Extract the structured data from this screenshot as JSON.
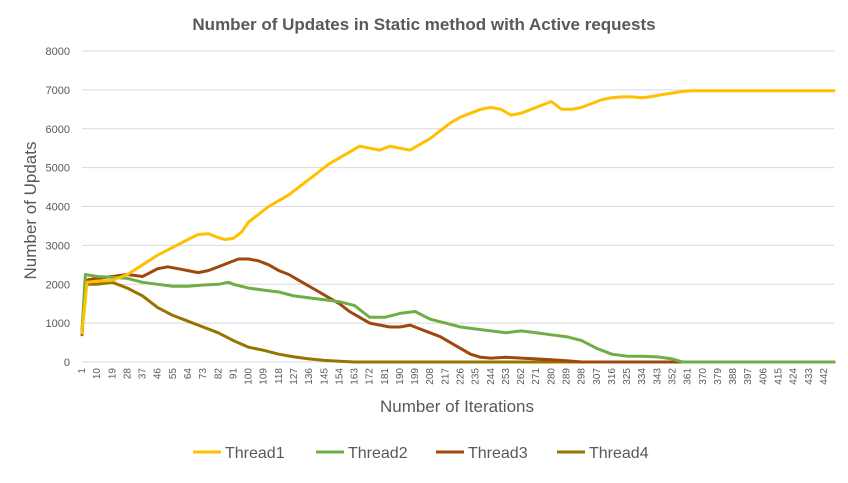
{
  "chart_data": {
    "type": "line",
    "title": "Number of Updates in Static method with Active requests",
    "xlabel": "Number of Iterations",
    "ylabel": "Number of Updats",
    "ylim": [
      0,
      8000
    ],
    "yticks": [
      0,
      1000,
      2000,
      3000,
      4000,
      5000,
      6000,
      7000,
      8000
    ],
    "xlim": [
      1,
      448
    ],
    "xticks": [
      1,
      10,
      19,
      28,
      37,
      46,
      55,
      64,
      73,
      82,
      91,
      100,
      109,
      118,
      127,
      136,
      145,
      154,
      163,
      172,
      181,
      190,
      199,
      208,
      217,
      226,
      235,
      244,
      253,
      262,
      271,
      280,
      289,
      298,
      307,
      316,
      325,
      334,
      343,
      352,
      361,
      370,
      379,
      388,
      397,
      406,
      415,
      424,
      433,
      442
    ],
    "grid": "horizontal",
    "legend": "bottom",
    "series": [
      {
        "name": "Thread1",
        "color": "#FFC000",
        "points": [
          [
            1,
            750
          ],
          [
            4,
            2050
          ],
          [
            10,
            2080
          ],
          [
            19,
            2100
          ],
          [
            28,
            2250
          ],
          [
            37,
            2500
          ],
          [
            46,
            2750
          ],
          [
            55,
            2950
          ],
          [
            64,
            3150
          ],
          [
            70,
            3280
          ],
          [
            76,
            3300
          ],
          [
            82,
            3200
          ],
          [
            86,
            3150
          ],
          [
            91,
            3180
          ],
          [
            96,
            3350
          ],
          [
            100,
            3600
          ],
          [
            106,
            3800
          ],
          [
            112,
            4000
          ],
          [
            118,
            4150
          ],
          [
            124,
            4300
          ],
          [
            130,
            4500
          ],
          [
            136,
            4700
          ],
          [
            142,
            4900
          ],
          [
            148,
            5100
          ],
          [
            154,
            5250
          ],
          [
            160,
            5400
          ],
          [
            166,
            5550
          ],
          [
            172,
            5500
          ],
          [
            178,
            5450
          ],
          [
            184,
            5550
          ],
          [
            190,
            5500
          ],
          [
            196,
            5450
          ],
          [
            202,
            5600
          ],
          [
            208,
            5750
          ],
          [
            214,
            5950
          ],
          [
            220,
            6150
          ],
          [
            226,
            6300
          ],
          [
            232,
            6400
          ],
          [
            238,
            6500
          ],
          [
            244,
            6550
          ],
          [
            250,
            6500
          ],
          [
            256,
            6350
          ],
          [
            262,
            6400
          ],
          [
            268,
            6500
          ],
          [
            274,
            6600
          ],
          [
            280,
            6700
          ],
          [
            286,
            6500
          ],
          [
            292,
            6500
          ],
          [
            298,
            6550
          ],
          [
            304,
            6650
          ],
          [
            310,
            6750
          ],
          [
            316,
            6800
          ],
          [
            322,
            6820
          ],
          [
            328,
            6820
          ],
          [
            334,
            6800
          ],
          [
            340,
            6830
          ],
          [
            346,
            6880
          ],
          [
            352,
            6920
          ],
          [
            358,
            6960
          ],
          [
            364,
            6980
          ],
          [
            448,
            6980
          ]
        ]
      },
      {
        "name": "Thread2",
        "color": "#70AD47",
        "points": [
          [
            1,
            800
          ],
          [
            3,
            2250
          ],
          [
            10,
            2200
          ],
          [
            19,
            2180
          ],
          [
            28,
            2150
          ],
          [
            37,
            2050
          ],
          [
            46,
            2000
          ],
          [
            55,
            1950
          ],
          [
            64,
            1950
          ],
          [
            73,
            1980
          ],
          [
            82,
            2000
          ],
          [
            88,
            2050
          ],
          [
            91,
            2000
          ],
          [
            100,
            1900
          ],
          [
            109,
            1850
          ],
          [
            118,
            1800
          ],
          [
            127,
            1700
          ],
          [
            136,
            1650
          ],
          [
            145,
            1600
          ],
          [
            154,
            1550
          ],
          [
            163,
            1450
          ],
          [
            172,
            1150
          ],
          [
            181,
            1150
          ],
          [
            190,
            1250
          ],
          [
            199,
            1300
          ],
          [
            208,
            1100
          ],
          [
            217,
            1000
          ],
          [
            226,
            900
          ],
          [
            235,
            850
          ],
          [
            244,
            800
          ],
          [
            253,
            750
          ],
          [
            262,
            800
          ],
          [
            271,
            750
          ],
          [
            280,
            700
          ],
          [
            289,
            650
          ],
          [
            298,
            550
          ],
          [
            307,
            350
          ],
          [
            316,
            200
          ],
          [
            325,
            150
          ],
          [
            334,
            150
          ],
          [
            343,
            130
          ],
          [
            352,
            80
          ],
          [
            358,
            0
          ],
          [
            448,
            0
          ]
        ]
      },
      {
        "name": "Thread3",
        "color": "#9E480E",
        "points": [
          [
            1,
            750
          ],
          [
            3,
            2100
          ],
          [
            10,
            2150
          ],
          [
            19,
            2200
          ],
          [
            28,
            2250
          ],
          [
            37,
            2200
          ],
          [
            46,
            2400
          ],
          [
            52,
            2450
          ],
          [
            58,
            2400
          ],
          [
            64,
            2350
          ],
          [
            70,
            2300
          ],
          [
            76,
            2350
          ],
          [
            82,
            2450
          ],
          [
            88,
            2550
          ],
          [
            94,
            2650
          ],
          [
            100,
            2650
          ],
          [
            106,
            2600
          ],
          [
            112,
            2500
          ],
          [
            118,
            2350
          ],
          [
            124,
            2250
          ],
          [
            130,
            2100
          ],
          [
            136,
            1950
          ],
          [
            142,
            1800
          ],
          [
            148,
            1650
          ],
          [
            154,
            1500
          ],
          [
            160,
            1300
          ],
          [
            166,
            1150
          ],
          [
            172,
            1000
          ],
          [
            178,
            950
          ],
          [
            184,
            900
          ],
          [
            190,
            900
          ],
          [
            196,
            950
          ],
          [
            202,
            850
          ],
          [
            208,
            750
          ],
          [
            214,
            650
          ],
          [
            220,
            500
          ],
          [
            226,
            350
          ],
          [
            232,
            200
          ],
          [
            238,
            120
          ],
          [
            244,
            100
          ],
          [
            253,
            120
          ],
          [
            262,
            100
          ],
          [
            271,
            80
          ],
          [
            280,
            60
          ],
          [
            289,
            30
          ],
          [
            298,
            0
          ],
          [
            448,
            0
          ]
        ]
      },
      {
        "name": "Thread4",
        "color": "#997300",
        "points": [
          [
            1,
            700
          ],
          [
            3,
            2000
          ],
          [
            10,
            2000
          ],
          [
            19,
            2050
          ],
          [
            28,
            1900
          ],
          [
            37,
            1700
          ],
          [
            46,
            1400
          ],
          [
            55,
            1200
          ],
          [
            64,
            1050
          ],
          [
            73,
            900
          ],
          [
            82,
            750
          ],
          [
            91,
            550
          ],
          [
            100,
            380
          ],
          [
            109,
            300
          ],
          [
            118,
            200
          ],
          [
            127,
            130
          ],
          [
            136,
            80
          ],
          [
            145,
            40
          ],
          [
            154,
            20
          ],
          [
            163,
            0
          ],
          [
            448,
            0
          ]
        ]
      }
    ]
  }
}
